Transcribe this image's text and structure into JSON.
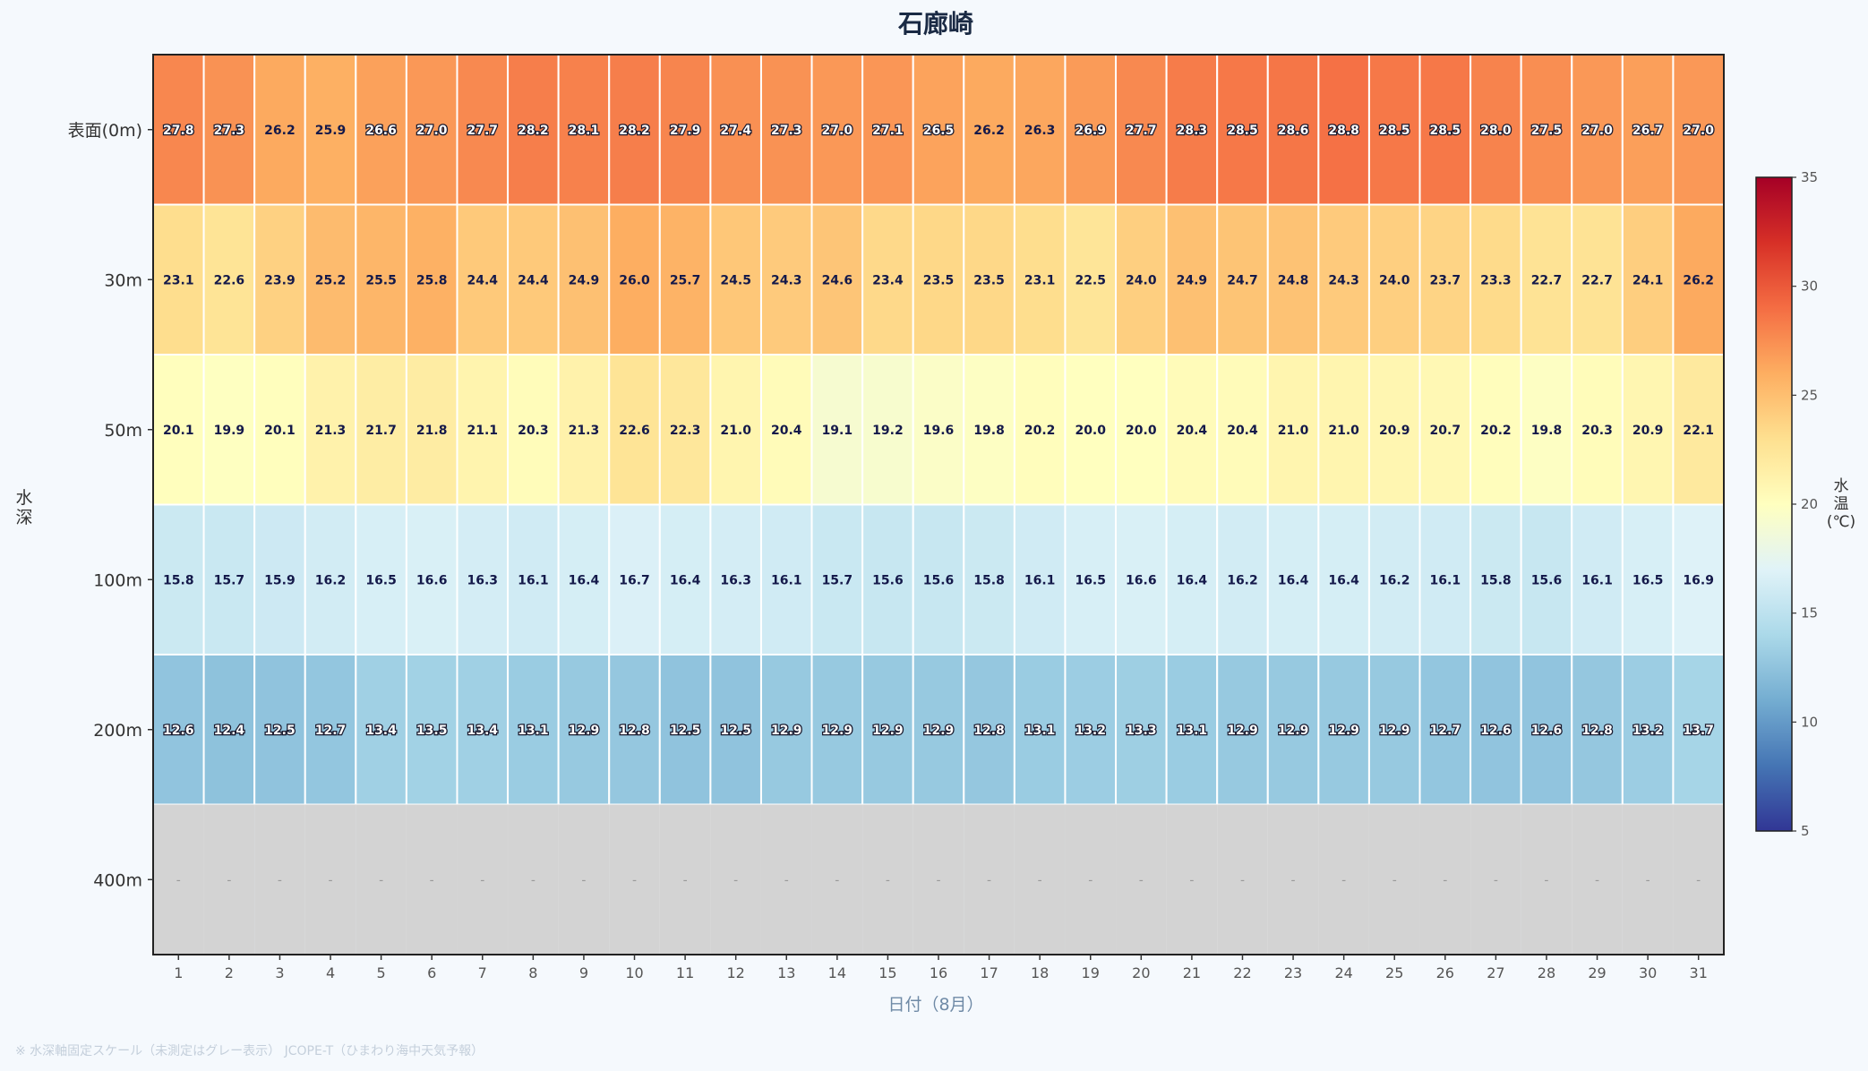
{
  "chart_data": {
    "type": "heatmap",
    "title": "石廊崎",
    "xlabel": "日付（8月）",
    "ylabel": "水深",
    "colorbar_label": "水温(℃)",
    "colorbar_ticks": [
      "5",
      "10",
      "15",
      "20",
      "25",
      "30",
      "35"
    ],
    "vmin": 5,
    "vmax": 35,
    "colormap": "RdYlBu_r",
    "missing_color": "#d3d3d3",
    "missing_label": "-",
    "footnote": "※ 水深軸固定スケール（未測定はグレー表示） JCOPE-T（ひまわり海中天気予報）",
    "x": [
      "1",
      "2",
      "3",
      "4",
      "5",
      "6",
      "7",
      "8",
      "9",
      "10",
      "11",
      "12",
      "13",
      "14",
      "15",
      "16",
      "17",
      "18",
      "19",
      "20",
      "21",
      "22",
      "23",
      "24",
      "25",
      "26",
      "27",
      "28",
      "29",
      "30",
      "31"
    ],
    "y": [
      "表面(0m)",
      "30m",
      "50m",
      "100m",
      "200m",
      "400m"
    ],
    "values": [
      [
        "27.8",
        "27.3",
        "26.2",
        "25.9",
        "26.6",
        "27.0",
        "27.7",
        "28.2",
        "28.1",
        "28.2",
        "27.9",
        "27.4",
        "27.3",
        "27.0",
        "27.1",
        "26.5",
        "26.2",
        "26.3",
        "26.9",
        "27.7",
        "28.3",
        "28.5",
        "28.6",
        "28.8",
        "28.5",
        "28.5",
        "28.0",
        "27.5",
        "27.0",
        "26.7",
        "27.0"
      ],
      [
        "23.1",
        "22.6",
        "23.9",
        "25.2",
        "25.5",
        "25.8",
        "24.4",
        "24.4",
        "24.9",
        "26.0",
        "25.7",
        "24.5",
        "24.3",
        "24.6",
        "23.4",
        "23.5",
        "23.5",
        "23.1",
        "22.5",
        "24.0",
        "24.9",
        "24.7",
        "24.8",
        "24.3",
        "24.0",
        "23.7",
        "23.3",
        "22.7",
        "22.7",
        "24.1",
        "26.2"
      ],
      [
        "20.1",
        "19.9",
        "20.1",
        "21.3",
        "21.7",
        "21.8",
        "21.1",
        "20.3",
        "21.3",
        "22.6",
        "22.3",
        "21.0",
        "20.4",
        "19.1",
        "19.2",
        "19.6",
        "19.8",
        "20.2",
        "20.0",
        "20.0",
        "20.4",
        "20.4",
        "21.0",
        "21.0",
        "20.9",
        "20.7",
        "20.2",
        "19.8",
        "20.3",
        "20.9",
        "22.1"
      ],
      [
        "15.8",
        "15.7",
        "15.9",
        "16.2",
        "16.5",
        "16.6",
        "16.3",
        "16.1",
        "16.4",
        "16.7",
        "16.4",
        "16.3",
        "16.1",
        "15.7",
        "15.6",
        "15.6",
        "15.8",
        "16.1",
        "16.5",
        "16.6",
        "16.4",
        "16.2",
        "16.4",
        "16.4",
        "16.2",
        "16.1",
        "15.8",
        "15.6",
        "16.1",
        "16.5",
        "16.9"
      ],
      [
        "12.6",
        "12.4",
        "12.5",
        "12.7",
        "13.4",
        "13.5",
        "13.4",
        "13.1",
        "12.9",
        "12.8",
        "12.5",
        "12.5",
        "12.9",
        "12.9",
        "12.9",
        "12.9",
        "12.8",
        "13.1",
        "13.2",
        "13.3",
        "13.1",
        "12.9",
        "12.9",
        "12.9",
        "12.9",
        "12.7",
        "12.6",
        "12.6",
        "12.8",
        "13.2",
        "13.7"
      ],
      [
        null,
        null,
        null,
        null,
        null,
        null,
        null,
        null,
        null,
        null,
        null,
        null,
        null,
        null,
        null,
        null,
        null,
        null,
        null,
        null,
        null,
        null,
        null,
        null,
        null,
        null,
        null,
        null,
        null,
        null,
        null
      ]
    ]
  }
}
